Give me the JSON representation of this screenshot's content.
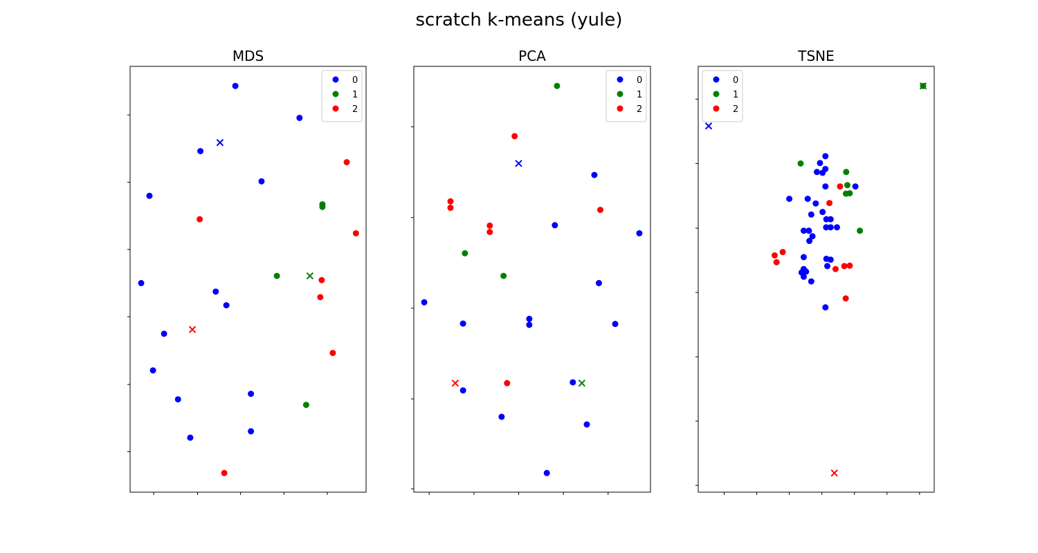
{
  "figure": {
    "suptitle": "scratch k-means (yule)",
    "colors": {
      "0": "#0000ff",
      "1": "#008000",
      "2": "#ff0000"
    }
  },
  "chart_data": [
    {
      "type": "scatter",
      "title": "MDS",
      "xlabel": "",
      "ylabel": "",
      "xlim": [
        0,
        100
      ],
      "ylim": [
        0,
        100
      ],
      "xticks": [
        10,
        28.6,
        46.8,
        65.2,
        83.6
      ],
      "yticks": [
        9.5,
        25.3,
        41.2,
        57,
        72.8,
        88.6
      ],
      "tick_labels_visible": false,
      "legend": {
        "placement": "upper right",
        "entries": [
          "0",
          "1",
          "2"
        ]
      },
      "series": [
        {
          "name": "0",
          "color": "#0000ff",
          "points": [
            [
              44.6,
              95.4
            ],
            [
              71.8,
              87.9
            ],
            [
              29.8,
              80.1
            ],
            [
              55.7,
              73
            ],
            [
              8.2,
              69.6
            ],
            [
              4.7,
              49.1
            ],
            [
              36.3,
              47.1
            ],
            [
              40.8,
              43.9
            ],
            [
              14.4,
              37.2
            ],
            [
              9.7,
              28.6
            ],
            [
              20.3,
              21.8
            ],
            [
              51.2,
              23.1
            ],
            [
              25.5,
              12.8
            ],
            [
              51.2,
              14.3
            ]
          ]
        },
        {
          "name": "1",
          "color": "#008000",
          "points": [
            [
              81.5,
              67.6
            ],
            [
              81.5,
              67
            ],
            [
              62.2,
              50.8
            ],
            [
              74.6,
              20.5
            ]
          ]
        },
        {
          "name": "2",
          "color": "#ff0000",
          "points": [
            [
              91.8,
              77.5
            ],
            [
              29.5,
              64.1
            ],
            [
              95.7,
              60.8
            ],
            [
              81.2,
              49.8
            ],
            [
              80.6,
              45.8
            ],
            [
              85.9,
              32.7
            ],
            [
              39.9,
              4.5
            ]
          ]
        }
      ],
      "centroids": [
        {
          "cluster": "0",
          "color": "#0000ff",
          "point": [
            38.1,
            82.1
          ]
        },
        {
          "cluster": "1",
          "color": "#008000",
          "point": [
            76.2,
            50.8
          ]
        },
        {
          "cluster": "2",
          "color": "#ff0000",
          "point": [
            26.4,
            38.2
          ]
        }
      ]
    },
    {
      "type": "scatter",
      "title": "PCA",
      "xlabel": "",
      "ylabel": "",
      "xlim": [
        0,
        100
      ],
      "ylim": [
        0,
        100
      ],
      "xticks": [
        6.5,
        25.4,
        44.3,
        63.2,
        82.1
      ],
      "yticks": [
        0.8,
        21.9,
        43.2,
        64.5,
        85.8
      ],
      "tick_labels_visible": false,
      "legend": {
        "placement": "upper right",
        "entries": [
          "0",
          "1",
          "2"
        ]
      },
      "series": [
        {
          "name": "0",
          "color": "#0000ff",
          "points": [
            [
              76.3,
              74.5
            ],
            [
              59.6,
              62.7
            ],
            [
              95.3,
              60.8
            ],
            [
              78.2,
              49.1
            ],
            [
              4.4,
              44.6
            ],
            [
              48.8,
              40.7
            ],
            [
              48.8,
              39.3
            ],
            [
              20.8,
              39.6
            ],
            [
              85.1,
              39.5
            ],
            [
              67.2,
              25.8
            ],
            [
              20.8,
              23.9
            ],
            [
              37.1,
              17.7
            ],
            [
              73.1,
              15.9
            ],
            [
              56.2,
              4.5
            ]
          ]
        },
        {
          "name": "1",
          "color": "#008000",
          "points": [
            [
              60.5,
              95.4
            ],
            [
              21.6,
              56.1
            ],
            [
              37.9,
              50.8
            ]
          ]
        },
        {
          "name": "2",
          "color": "#ff0000",
          "points": [
            [
              42.6,
              83.6
            ],
            [
              15.5,
              68.3
            ],
            [
              15.5,
              66.8
            ],
            [
              78.8,
              66.3
            ],
            [
              32.1,
              62.6
            ],
            [
              32.1,
              61.1
            ],
            [
              39.4,
              25.6
            ]
          ]
        }
      ],
      "centroids": [
        {
          "cluster": "0",
          "color": "#0000ff",
          "point": [
            44.3,
            77.2
          ]
        },
        {
          "cluster": "1",
          "color": "#008000",
          "point": [
            71,
            25.6
          ]
        },
        {
          "cluster": "2",
          "color": "#ff0000",
          "point": [
            17.5,
            25.6
          ]
        }
      ]
    },
    {
      "type": "scatter",
      "title": "TSNE",
      "xlabel": "",
      "ylabel": "",
      "xlim": [
        0,
        100
      ],
      "ylim": [
        0,
        100
      ],
      "xticks": [
        11,
        24.8,
        38.6,
        52.4,
        66.2,
        80,
        93.8
      ],
      "yticks": [
        1.6,
        16.7,
        31.8,
        46.9,
        62,
        77.2,
        92.3
      ],
      "tick_labels_visible": false,
      "legend": {
        "placement": "upper left",
        "entries": [
          "0",
          "1",
          "2"
        ]
      },
      "series": [
        {
          "name": "0",
          "color": "#0000ff",
          "points": [
            [
              53.9,
              78.9
            ],
            [
              51.6,
              77.3
            ],
            [
              50.3,
              75.2
            ],
            [
              52.7,
              75.0
            ],
            [
              53.9,
              75.9
            ],
            [
              53.9,
              71.8
            ],
            [
              66.6,
              71.8
            ],
            [
              38.6,
              68.9
            ],
            [
              46.4,
              68.9
            ],
            [
              49.8,
              67.8
            ],
            [
              52.7,
              65.8
            ],
            [
              47.9,
              65.2
            ],
            [
              54.3,
              64.1
            ],
            [
              56.1,
              64.1
            ],
            [
              54.2,
              62.2
            ],
            [
              56.1,
              62.2
            ],
            [
              58.8,
              62.2
            ],
            [
              44.7,
              61.4
            ],
            [
              46.9,
              61.4
            ],
            [
              48.4,
              60.1
            ],
            [
              47.1,
              59.0
            ],
            [
              44.7,
              55.2
            ],
            [
              54.3,
              54.8
            ],
            [
              56.1,
              54.6
            ],
            [
              54.7,
              53.1
            ],
            [
              44.7,
              52.4
            ],
            [
              45.7,
              51.8
            ],
            [
              43.8,
              51.6
            ],
            [
              44.7,
              50.6
            ],
            [
              47.9,
              49.5
            ],
            [
              53.9,
              43.4
            ]
          ]
        },
        {
          "name": "1",
          "color": "#008000",
          "points": [
            [
              43.4,
              77.2
            ],
            [
              62.7,
              75.2
            ],
            [
              63.2,
              72.1
            ],
            [
              64.2,
              70.2
            ],
            [
              62.6,
              70.1
            ],
            [
              68.5,
              61.4
            ],
            [
              95.3,
              95.4
            ]
          ]
        },
        {
          "name": "2",
          "color": "#ff0000",
          "points": [
            [
              60.1,
              71.8
            ],
            [
              55.6,
              67.9
            ],
            [
              35.8,
              56.4
            ],
            [
              32.4,
              55.6
            ],
            [
              33.2,
              54.0
            ],
            [
              64.2,
              53.2
            ],
            [
              61.9,
              53.1
            ],
            [
              58.2,
              52.4
            ],
            [
              62.5,
              45.5
            ]
          ]
        }
      ],
      "centroids": [
        {
          "cluster": "0",
          "color": "#0000ff",
          "point": [
            4.4,
            86.0
          ]
        },
        {
          "cluster": "1",
          "color": "#008000",
          "point": [
            95.3,
            95.4
          ]
        },
        {
          "cluster": "2",
          "color": "#ff0000",
          "point": [
            57.7,
            4.5
          ]
        }
      ]
    }
  ]
}
